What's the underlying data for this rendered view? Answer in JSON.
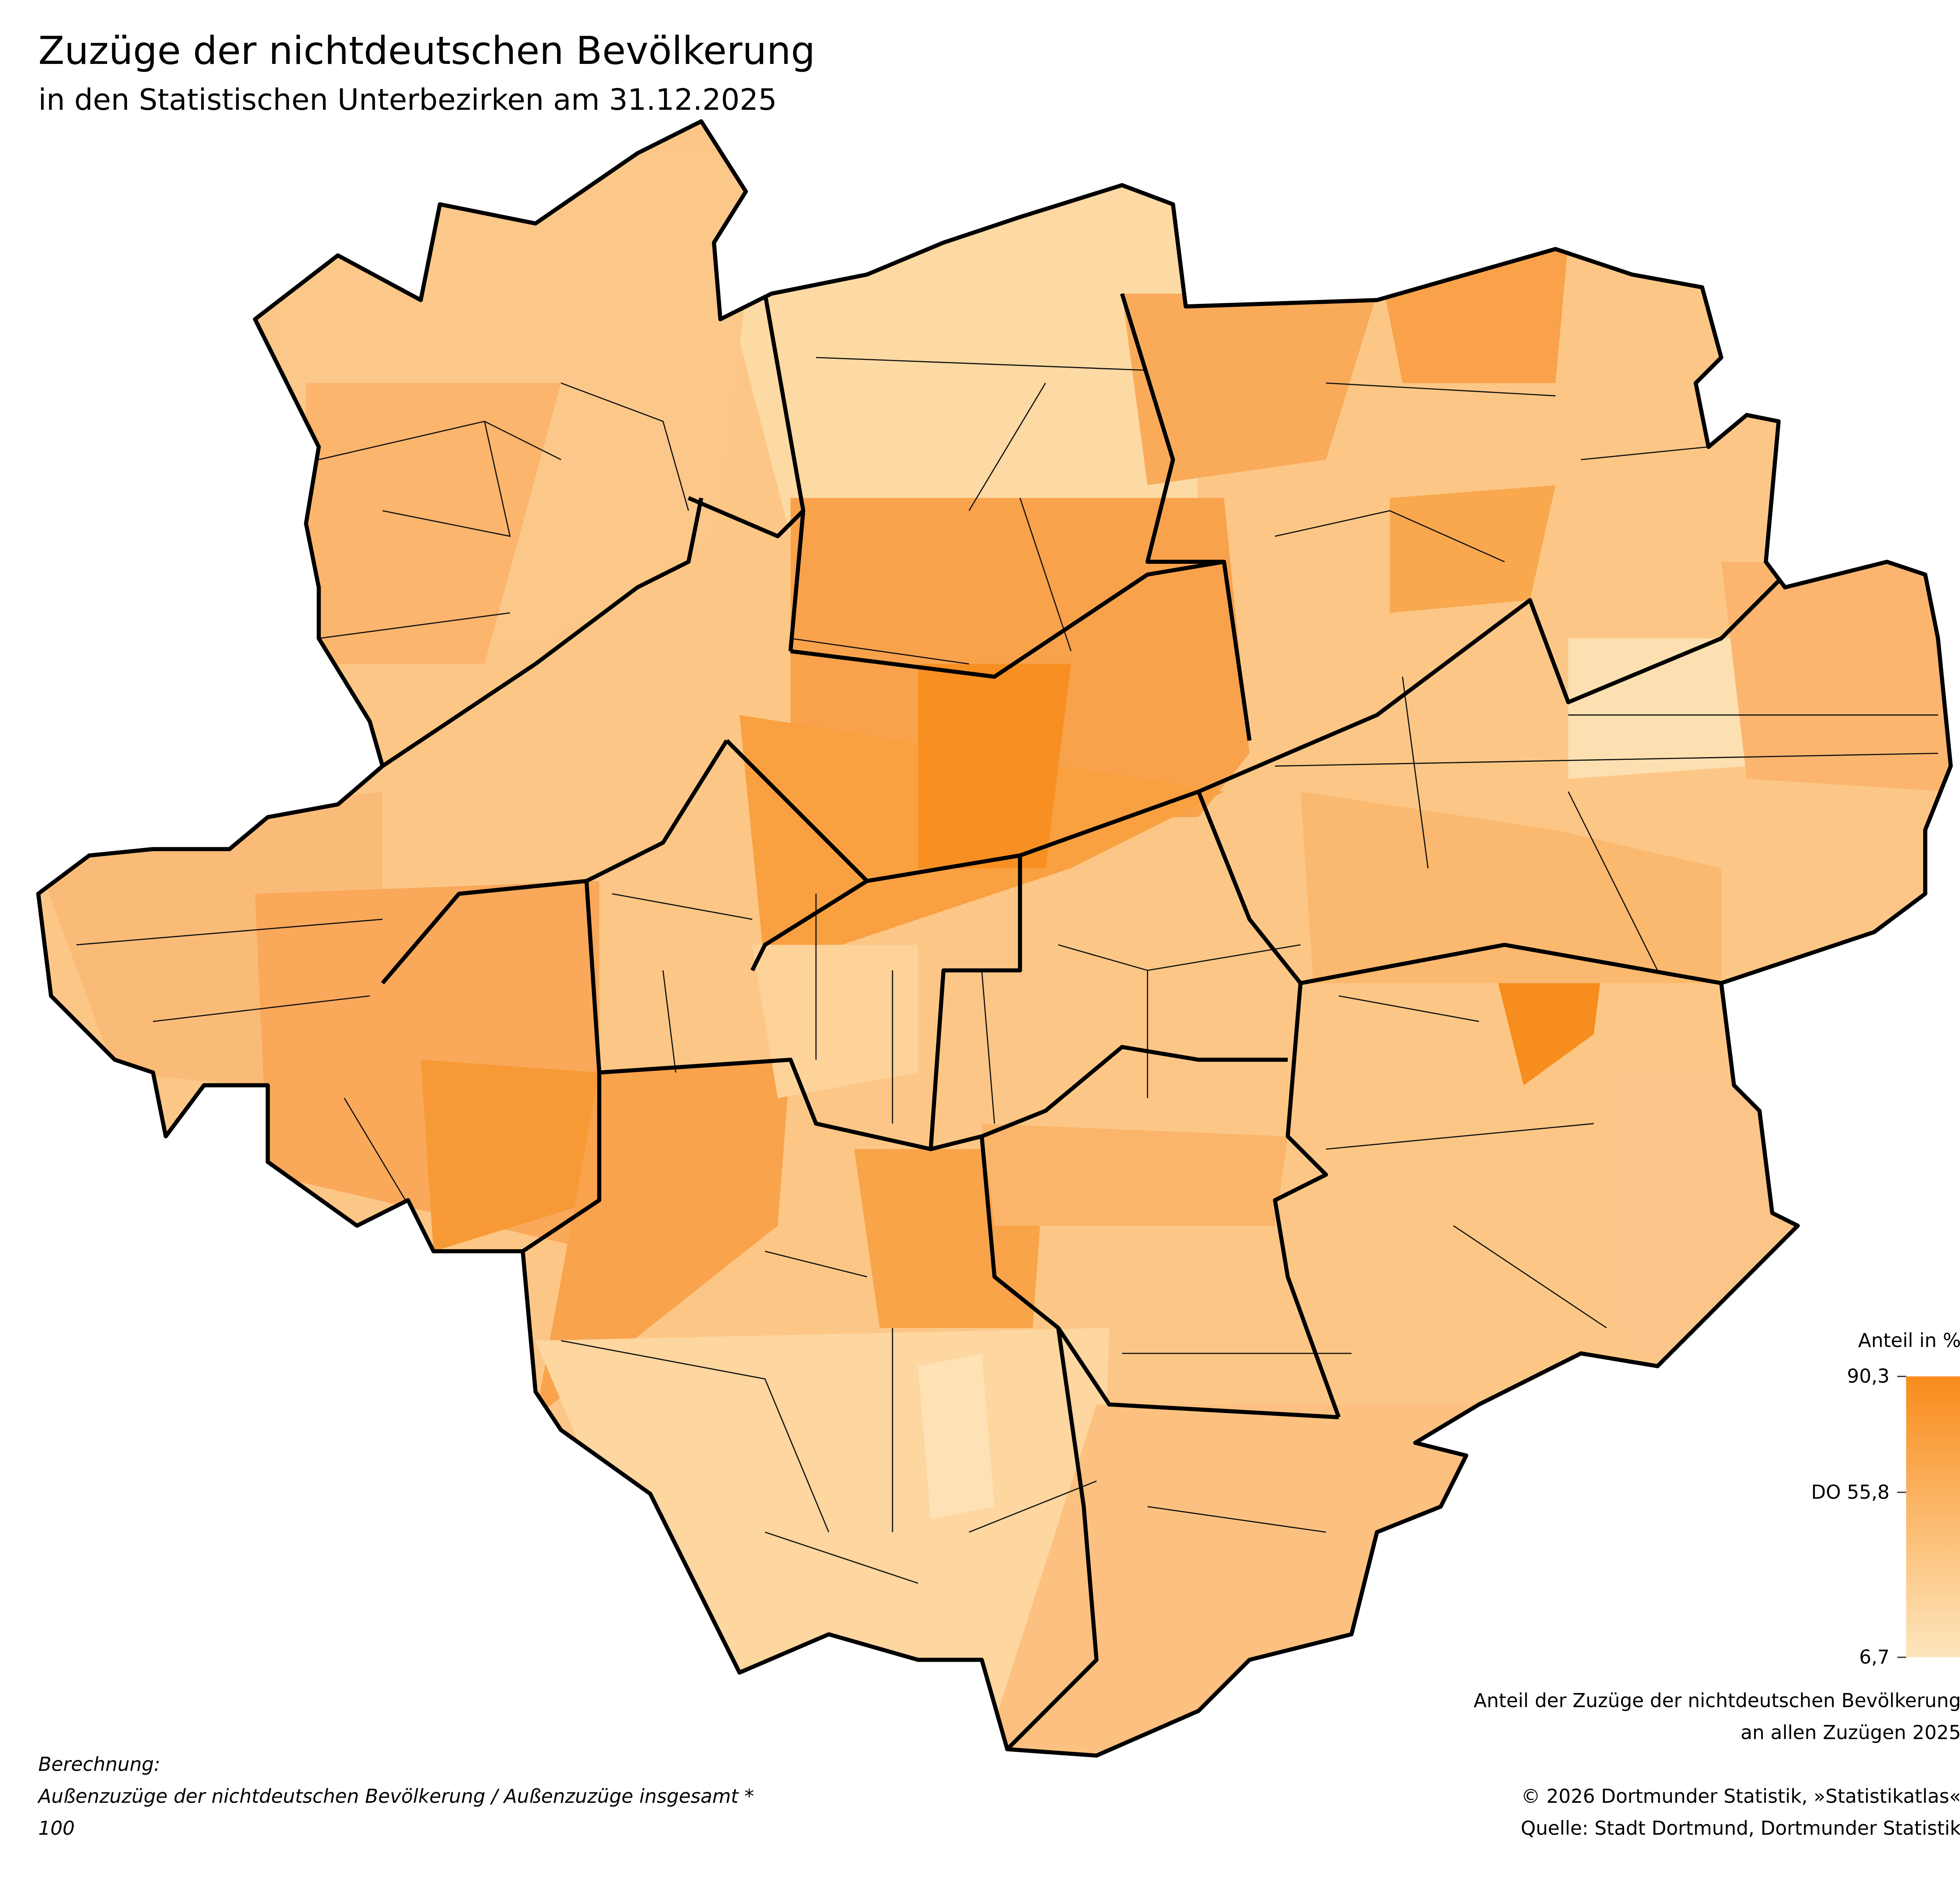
{
  "title": "Zuzüge der nichtdeutschen Bevölkerung",
  "subtitle": "in den Statistischen Unterbezirken am 31.12.2025",
  "legend": {
    "title": "Anteil in %",
    "range": [
      6.7,
      90.3
    ],
    "colors": [
      "#fde6bd",
      "#f98c1c"
    ],
    "ticks": [
      {
        "value": 90.3,
        "label": "90,3"
      },
      {
        "value": 55.8,
        "label": "DO 55,8"
      },
      {
        "value": 6.7,
        "label": "6,7"
      }
    ]
  },
  "caption": [
    "Anteil der Zuzüge der nichtdeutschen Bevölkerung",
    "an allen Zuzügen 2025"
  ],
  "note": {
    "heading": "Berechnung:",
    "lines": [
      "Außenzuzüge der nichtdeutschen Bevölkerung / Außenzuzüge insgesamt *",
      "100"
    ]
  },
  "credits": [
    "© 2026 Dortmunder Statistik, »Statistikatlas«",
    "Quelle: Stadt Dortmund, Dortmunder Statistik"
  ]
}
